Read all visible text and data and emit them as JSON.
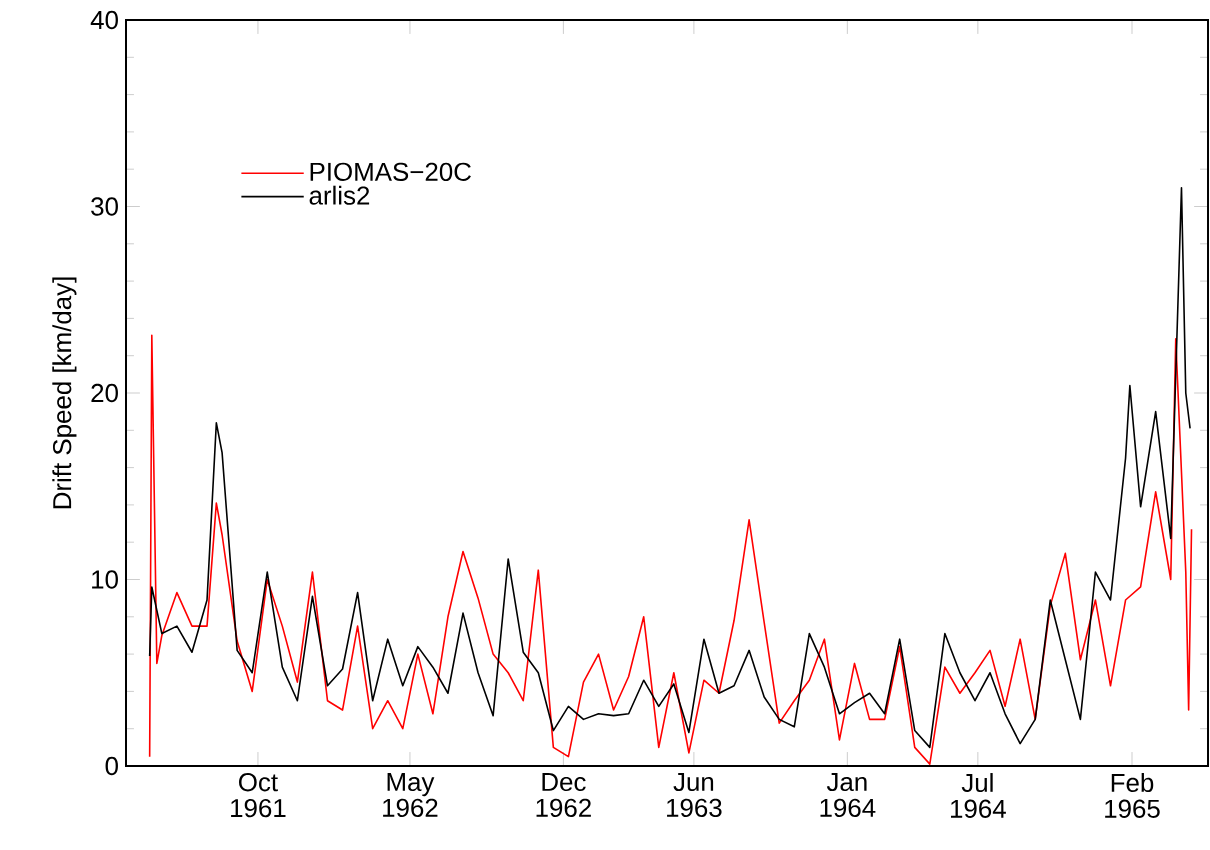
{
  "chart_data": {
    "type": "line",
    "ylabel": "Drift Speed [km/day]",
    "xlim": [
      "1961-03-31",
      "1965-05-18"
    ],
    "ylim": [
      0,
      40
    ],
    "xticks": [
      {
        "value": "1961-10-01",
        "label": "Oct 1961"
      },
      {
        "value": "1962-05-01",
        "label": "May 1962"
      },
      {
        "value": "1962-12-01",
        "label": "Dec 1962"
      },
      {
        "value": "1963-06-01",
        "label": "Jun 1963"
      },
      {
        "value": "1964-01-01",
        "label": "Jan 1964"
      },
      {
        "value": "1964-07-01",
        "label": "Jul 1964"
      },
      {
        "value": "1965-02-01",
        "label": "Feb 1965"
      }
    ],
    "yticks": [
      0,
      10,
      20,
      30,
      40
    ],
    "grid": false,
    "legend": "top left",
    "marker": "none",
    "line_style": "solid",
    "series": [
      {
        "name": "PIOMAS−20C",
        "color": "#ff0000",
        "x": [
          "1961-05-03",
          "1961-05-06",
          "1961-05-13",
          "1961-05-20",
          "1961-06-10",
          "1961-07-01",
          "1961-07-22",
          "1961-08-04",
          "1961-08-12",
          "1961-09-02",
          "1961-09-23",
          "1961-10-14",
          "1961-11-04",
          "1961-11-25",
          "1961-12-16",
          "1962-01-06",
          "1962-01-27",
          "1962-02-17",
          "1962-03-10",
          "1962-03-31",
          "1962-04-21",
          "1962-05-12",
          "1962-06-02",
          "1962-06-23",
          "1962-07-14",
          "1962-08-04",
          "1962-08-25",
          "1962-09-15",
          "1962-10-06",
          "1962-10-27",
          "1962-11-17",
          "1962-12-08",
          "1962-12-29",
          "1963-01-19",
          "1963-02-09",
          "1963-03-02",
          "1963-03-23",
          "1963-04-13",
          "1963-05-04",
          "1963-05-25",
          "1963-06-15",
          "1963-07-06",
          "1963-07-27",
          "1963-08-17",
          "1963-09-07",
          "1963-09-28",
          "1963-10-19",
          "1963-11-09",
          "1963-11-30",
          "1963-12-21",
          "1964-01-11",
          "1964-02-01",
          "1964-02-22",
          "1964-03-14",
          "1964-04-04",
          "1964-04-25",
          "1964-05-16",
          "1964-06-06",
          "1964-06-27",
          "1964-07-18",
          "1964-08-08",
          "1964-08-29",
          "1964-09-19",
          "1964-10-10",
          "1964-10-31",
          "1964-11-21",
          "1964-12-12",
          "1965-01-02",
          "1965-01-23",
          "1965-02-13",
          "1965-03-06",
          "1965-03-27",
          "1965-04-03",
          "1965-04-17",
          "1965-04-21",
          "1965-04-25"
        ],
        "values": [
          0.5,
          23.1,
          5.5,
          7.0,
          9.3,
          7.5,
          7.5,
          14.1,
          12.4,
          6.7,
          4.0,
          10.0,
          7.5,
          4.5,
          10.4,
          3.5,
          3.0,
          7.5,
          2.0,
          3.5,
          2.0,
          6.0,
          2.8,
          8.0,
          11.5,
          9.0,
          6.0,
          5.0,
          3.5,
          10.5,
          1.0,
          0.5,
          4.5,
          6.0,
          3.0,
          4.8,
          8.0,
          1.0,
          5.0,
          0.7,
          4.6,
          3.9,
          7.8,
          13.2,
          7.7,
          2.3,
          3.5,
          4.6,
          6.8,
          1.4,
          5.5,
          2.5,
          2.5,
          6.4,
          1.0,
          0.1,
          5.3,
          3.9,
          5.0,
          6.2,
          3.2,
          6.8,
          2.5,
          8.6,
          11.4,
          5.7,
          8.9,
          4.3,
          8.9,
          9.6,
          14.7,
          10.0,
          22.9,
          10.4,
          3.0,
          12.7
        ]
      },
      {
        "name": "arlis2",
        "color": "#000000",
        "x": [
          "1961-05-03",
          "1961-05-06",
          "1961-05-20",
          "1961-06-10",
          "1961-07-01",
          "1961-07-22",
          "1961-08-04",
          "1961-08-12",
          "1961-09-02",
          "1961-09-23",
          "1961-10-14",
          "1961-11-04",
          "1961-11-25",
          "1961-12-16",
          "1962-01-06",
          "1962-01-27",
          "1962-02-17",
          "1962-03-10",
          "1962-03-31",
          "1962-04-21",
          "1962-05-12",
          "1962-06-02",
          "1962-06-23",
          "1962-07-14",
          "1962-08-04",
          "1962-08-25",
          "1962-09-15",
          "1962-10-06",
          "1962-10-27",
          "1962-11-17",
          "1962-12-08",
          "1962-12-29",
          "1963-01-19",
          "1963-02-09",
          "1963-03-02",
          "1963-03-23",
          "1963-04-13",
          "1963-05-04",
          "1963-05-25",
          "1963-06-15",
          "1963-07-06",
          "1963-07-27",
          "1963-08-17",
          "1963-09-07",
          "1963-09-28",
          "1963-10-19",
          "1963-11-09",
          "1963-11-30",
          "1963-12-21",
          "1964-01-11",
          "1964-02-01",
          "1964-02-22",
          "1964-03-14",
          "1964-04-04",
          "1964-04-25",
          "1964-05-16",
          "1964-06-06",
          "1964-06-27",
          "1964-07-18",
          "1964-08-08",
          "1964-08-29",
          "1964-09-19",
          "1964-10-10",
          "1964-10-31",
          "1964-11-21",
          "1964-12-12",
          "1965-01-02",
          "1965-01-23",
          "1965-01-29",
          "1965-02-13",
          "1965-03-06",
          "1965-03-27",
          "1965-04-11",
          "1965-04-17",
          "1965-04-23"
        ],
        "values": [
          5.9,
          9.6,
          7.1,
          7.5,
          6.1,
          8.9,
          18.4,
          16.8,
          6.2,
          5.0,
          10.4,
          5.3,
          3.5,
          9.1,
          4.3,
          5.2,
          9.3,
          3.5,
          6.8,
          4.3,
          6.4,
          5.3,
          3.9,
          8.2,
          5.0,
          2.7,
          11.1,
          6.1,
          5.0,
          1.9,
          3.2,
          2.5,
          2.8,
          2.7,
          2.8,
          4.6,
          3.2,
          4.4,
          1.8,
          6.8,
          3.9,
          4.3,
          6.2,
          3.7,
          2.5,
          2.1,
          7.1,
          5.3,
          2.8,
          3.4,
          3.9,
          2.8,
          6.8,
          1.9,
          1.0,
          7.1,
          5.0,
          3.5,
          5.0,
          2.8,
          1.2,
          2.5,
          8.9,
          5.7,
          2.5,
          10.4,
          8.9,
          16.5,
          20.4,
          13.9,
          19.0,
          12.2,
          31.0,
          20.0,
          18.1
        ]
      }
    ]
  }
}
